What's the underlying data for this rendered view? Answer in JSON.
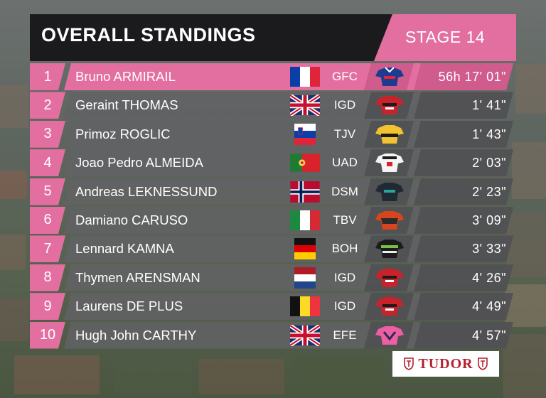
{
  "header": {
    "title": "OVERALL STANDINGS",
    "stage": "STAGE 14"
  },
  "sponsor": {
    "name": "TUDOR"
  },
  "standings": [
    {
      "rank": "1",
      "rider": "Bruno ARMIRAIL",
      "team": "GFC",
      "time": "56h 17' 01\"",
      "flag": "france-flag-icon",
      "jersey": "groupama-fdj-jersey-icon"
    },
    {
      "rank": "2",
      "rider": "Geraint THOMAS",
      "team": "IGD",
      "time": "1' 41\"",
      "flag": "uk-flag-icon",
      "jersey": "ineos-jersey-icon"
    },
    {
      "rank": "3",
      "rider": "Primoz ROGLIC",
      "team": "TJV",
      "time": "1' 43\"",
      "flag": "slovenia-flag-icon",
      "jersey": "jumbo-visma-jersey-icon"
    },
    {
      "rank": "4",
      "rider": "Joao Pedro ALMEIDA",
      "team": "UAD",
      "time": "2' 03\"",
      "flag": "portugal-flag-icon",
      "jersey": "uae-jersey-icon"
    },
    {
      "rank": "5",
      "rider": "Andreas LEKNESSUND",
      "team": "DSM",
      "time": "2' 23\"",
      "flag": "norway-flag-icon",
      "jersey": "dsm-jersey-icon"
    },
    {
      "rank": "6",
      "rider": "Damiano CARUSO",
      "team": "TBV",
      "time": "3' 09\"",
      "flag": "italy-flag-icon",
      "jersey": "bahrain-jersey-icon"
    },
    {
      "rank": "7",
      "rider": "Lennard KAMNA",
      "team": "BOH",
      "time": "3' 33\"",
      "flag": "germany-flag-icon",
      "jersey": "bora-jersey-icon"
    },
    {
      "rank": "8",
      "rider": "Thymen ARENSMAN",
      "team": "IGD",
      "time": "4' 26\"",
      "flag": "netherlands-flag-icon",
      "jersey": "ineos-jersey-icon"
    },
    {
      "rank": "9",
      "rider": "Laurens DE PLUS",
      "team": "IGD",
      "time": "4' 49\"",
      "flag": "belgium-flag-icon",
      "jersey": "ineos-jersey-icon"
    },
    {
      "rank": "10",
      "rider": "Hugh John CARTHY",
      "team": "EFE",
      "time": "4' 57\"",
      "flag": "uk-flag-icon",
      "jersey": "ef-jersey-icon"
    }
  ],
  "colors": {
    "accent_pink": "#e36fa1",
    "header_dark": "#1b1b1d",
    "row_band": "#626264",
    "sponsor_red": "#b51f2e"
  }
}
